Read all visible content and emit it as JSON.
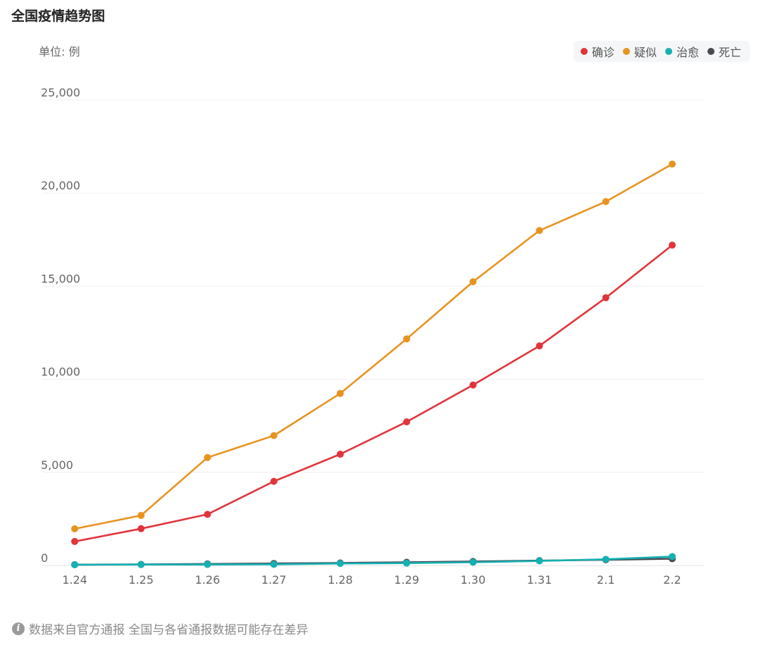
{
  "page": {
    "title": "全国疫情趋势图",
    "unit_label": "单位: 例",
    "footer_note": "数据来自官方通报 全国与各省通报数据可能存在差异"
  },
  "chart_data": {
    "type": "line",
    "title": "全国疫情趋势图",
    "ylabel": "单位: 例",
    "xlabel": "",
    "categories": [
      "1.24",
      "1.25",
      "1.26",
      "1.27",
      "1.28",
      "1.29",
      "1.30",
      "1.31",
      "2.1",
      "2.2"
    ],
    "y_ticks": [
      0,
      5000,
      10000,
      15000,
      20000,
      25000
    ],
    "y_tick_labels": [
      "0",
      "5,000",
      "10,000",
      "15,000",
      "20,000",
      "25,000"
    ],
    "ylim": [
      0,
      25000
    ],
    "grid": true,
    "legend_position": "top-right",
    "series": [
      {
        "name": "确诊",
        "color": "#e0353b",
        "values": [
          1287,
          1975,
          2744,
          4515,
          5974,
          7711,
          9692,
          11791,
          14380,
          17205
        ]
      },
      {
        "name": "疑似",
        "color": "#e8931f",
        "values": [
          1965,
          2684,
          5794,
          6973,
          9239,
          12167,
          15238,
          17988,
          19544,
          21558
        ]
      },
      {
        "name": "治愈",
        "color": "#15b0b2",
        "values": [
          38,
          49,
          51,
          60,
          103,
          124,
          171,
          243,
          328,
          475
        ]
      },
      {
        "name": "死亡",
        "color": "#4a4a50",
        "values": [
          41,
          56,
          80,
          106,
          132,
          170,
          213,
          259,
          304,
          361
        ]
      }
    ],
    "draw_order": [
      "死亡",
      "确诊",
      "疑似",
      "治愈"
    ],
    "legend_order": [
      "确诊",
      "疑似",
      "治愈",
      "死亡"
    ]
  }
}
